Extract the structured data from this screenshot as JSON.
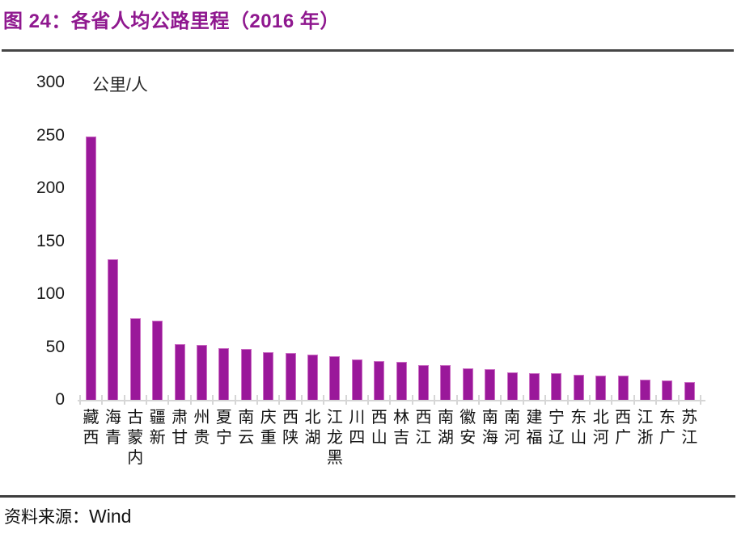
{
  "figure": {
    "title": "图 24：各省人均公路里程（2016 年）",
    "source_label": "资料来源：",
    "source_value": "Wind"
  },
  "chart_data": {
    "type": "bar",
    "title": "各省人均公路里程（2016 年）",
    "figure_label": "图 24",
    "unit_label": "公里/人",
    "ylabel": "公里/人",
    "xlabel": "",
    "ylim": [
      0,
      300
    ],
    "yticks": [
      0,
      50,
      100,
      150,
      200,
      250,
      300
    ],
    "grid": false,
    "legend": "none",
    "bar_color": "#9A189A",
    "categories": [
      "西藏",
      "青海",
      "内蒙古",
      "新疆",
      "甘肃",
      "贵州",
      "宁夏",
      "云南",
      "重庆",
      "陕西",
      "湖北",
      "黑龙江",
      "四川",
      "山西",
      "吉林",
      "江西",
      "湖南",
      "安徽",
      "海南",
      "河南",
      "福建",
      "辽宁",
      "山东",
      "河北",
      "广西",
      "浙江",
      "广东",
      "江苏"
    ],
    "values": [
      249,
      133,
      77,
      75,
      53,
      52,
      49,
      48,
      45,
      44,
      43,
      41,
      38,
      37,
      36,
      33,
      33,
      30,
      29,
      26,
      25,
      25,
      24,
      23,
      23,
      19,
      18,
      17
    ],
    "source": "Wind"
  },
  "colors": {
    "title": "#8F188F",
    "bar": "#9A189A",
    "bar_edge": "#CB6EC4",
    "rule": "#3d3d3d",
    "axis": "#d6d6d6",
    "text": "#111111"
  }
}
